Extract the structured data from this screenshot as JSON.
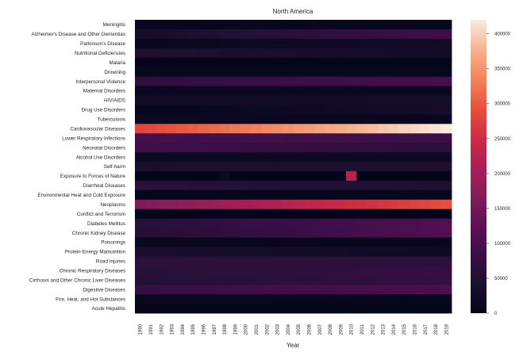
{
  "chart_data": {
    "type": "heatmap",
    "title": "North America",
    "xlabel": "Year",
    "ylabel": "",
    "x": [
      "1990",
      "1991",
      "1992",
      "1993",
      "1994",
      "1995",
      "1996",
      "1997",
      "1998",
      "1999",
      "2000",
      "2001",
      "2002",
      "2003",
      "2004",
      "2005",
      "2006",
      "2007",
      "2008",
      "2009",
      "2010",
      "2011",
      "2012",
      "2013",
      "2014",
      "2015",
      "2016",
      "2017",
      "2018",
      "2019"
    ],
    "y": [
      "Meningitis",
      "Alzheimer's Disease and Other Dementias",
      "Parkinson's Disease",
      "Nutritional Deficiencies",
      "Malaria",
      "Drowning",
      "Interpersonal Violence",
      "Maternal Disorders",
      "HIV/AIDS",
      "Drug Use Disorders",
      "Tuberculosis",
      "Cardiovascular Diseases",
      "Lower Respiratory Infections",
      "Neonatal Disorders",
      "Alcohol Use Disorders",
      "Self-harm",
      "Exposure to Forces of Nature",
      "Diarrheal Diseases",
      "Environmental Heat and Cold Exposure",
      "Neoplasms",
      "Conflict and Terrorism",
      "Diabetes Mellitus",
      "Chronic Kidney Disease",
      "Poisonings",
      "Protein-Energy Malnutrition",
      "Road Injuries",
      "Chronic Respiratory Diseases",
      "Cirrhosis and Other Chronic Liver Diseases",
      "Digestive Diseases",
      "Fire, Heat, and Hot Substances",
      "Acute Hepatitis"
    ],
    "series": [
      {
        "name": "Meningitis",
        "start": 9000,
        "end": 7000
      },
      {
        "name": "Alzheimer's Disease and Other Dementias",
        "start": 30000,
        "end": 90000
      },
      {
        "name": "Parkinson's Disease",
        "start": 8000,
        "end": 25000
      },
      {
        "name": "Nutritional Deficiencies",
        "start": 45000,
        "end": 25000
      },
      {
        "name": "Malaria",
        "start": 1000,
        "end": 500
      },
      {
        "name": "Drowning",
        "start": 8000,
        "end": 6000
      },
      {
        "name": "Interpersonal Violence",
        "start": 70000,
        "end": 95000
      },
      {
        "name": "Maternal Disorders",
        "start": 12000,
        "end": 12000
      },
      {
        "name": "HIV/AIDS",
        "start": 25000,
        "end": 30000
      },
      {
        "name": "Drug Use Disorders",
        "start": 5000,
        "end": 30000
      },
      {
        "name": "Tuberculosis",
        "start": 15000,
        "end": 8000
      },
      {
        "name": "Cardiovascular Diseases",
        "start": 280000,
        "end": 420000
      },
      {
        "name": "Lower Respiratory Infections",
        "start": 95000,
        "end": 85000
      },
      {
        "name": "Neonatal Disorders",
        "start": 90000,
        "end": 60000
      },
      {
        "name": "Alcohol Use Disorders",
        "start": 15000,
        "end": 20000
      },
      {
        "name": "Self-harm",
        "start": 35000,
        "end": 45000
      },
      {
        "name": "Exposure to Forces of Nature",
        "start": 500,
        "end": 500
      },
      {
        "name": "Diarrheal Diseases",
        "start": 60000,
        "end": 40000
      },
      {
        "name": "Environmental Heat and Cold Exposure",
        "start": 5000,
        "end": 5000
      },
      {
        "name": "Neoplasms",
        "start": 160000,
        "end": 290000
      },
      {
        "name": "Conflict and Terrorism",
        "start": 2000,
        "end": 1000
      },
      {
        "name": "Diabetes Mellitus",
        "start": 55000,
        "end": 110000
      },
      {
        "name": "Chronic Kidney Disease",
        "start": 50000,
        "end": 110000
      },
      {
        "name": "Poisonings",
        "start": 10000,
        "end": 8000
      },
      {
        "name": "Protein-Energy Malnutrition",
        "start": 35000,
        "end": 20000
      },
      {
        "name": "Road Injuries",
        "start": 60000,
        "end": 60000
      },
      {
        "name": "Chronic Respiratory Diseases",
        "start": 55000,
        "end": 75000
      },
      {
        "name": "Cirrhosis and Other Chronic Liver Diseases",
        "start": 50000,
        "end": 75000
      },
      {
        "name": "Digestive Diseases",
        "start": 75000,
        "end": 105000
      },
      {
        "name": "Fire, Heat, and Hot Substances",
        "start": 8000,
        "end": 5000
      },
      {
        "name": "Acute Hepatitis",
        "start": 3000,
        "end": 2000
      }
    ],
    "anomalies": [
      {
        "name": "Exposure to Forces of Nature",
        "year": "1998",
        "value": 15000
      },
      {
        "name": "Exposure to Forces of Nature",
        "year": "2010",
        "value": 220000
      }
    ],
    "colorbar": {
      "min": 0,
      "max": 420000,
      "ticks": [
        "0",
        "50000",
        "100000",
        "150000",
        "200000",
        "250000",
        "300000",
        "350000",
        "400000"
      ],
      "colormap": "rocket"
    },
    "grid": false,
    "legend": "colorbar-right"
  }
}
